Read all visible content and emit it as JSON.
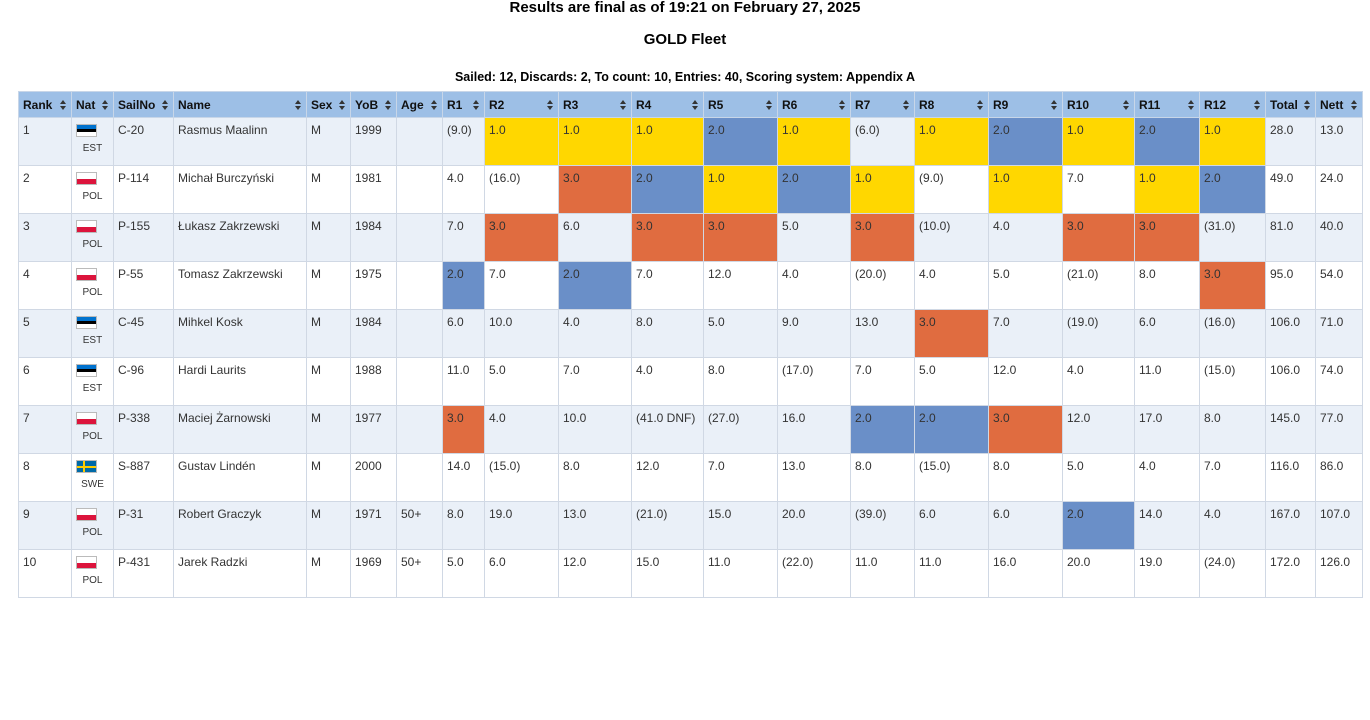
{
  "header": {
    "title": "Results are final as of 19:21 on February 27, 2025",
    "fleet": "GOLD Fleet",
    "summary": "Sailed: 12, Discards: 2, To count: 10, Entries: 40, Scoring system: Appendix A"
  },
  "table": {
    "columns": [
      "Rank",
      "Nat",
      "SailNo",
      "Name",
      "Sex",
      "YoB",
      "Age",
      "R1",
      "R2",
      "R3",
      "R4",
      "R5",
      "R6",
      "R7",
      "R8",
      "R9",
      "R10",
      "R11",
      "R12",
      "Total",
      "Nett"
    ],
    "highlight": {
      "1.0": "#ffd700",
      "2.0": "#6a8fc8",
      "3.0": "#e06c40"
    },
    "flags": {
      "EST": {
        "stripes": [
          "#0072ce",
          "#000000",
          "#ffffff"
        ]
      },
      "POL": {
        "stripes": [
          "#ffffff",
          "#dc143c"
        ]
      },
      "SWE": {
        "stripes": [
          "#006aa7"
        ],
        "cross": "#fecc00"
      }
    },
    "rows": [
      [
        "1",
        "EST",
        "C-20",
        "Rasmus Maalinn",
        "M",
        "1999",
        null,
        "(9.0)",
        "1.0",
        "1.0",
        "1.0",
        "2.0",
        "1.0",
        "(6.0)",
        "1.0",
        "2.0",
        "1.0",
        "2.0",
        "1.0",
        "28.0",
        "13.0"
      ],
      [
        "2",
        "POL",
        "P-114",
        "Michał Burczyński",
        "M",
        "1981",
        null,
        "4.0",
        "(16.0)",
        "3.0",
        "2.0",
        "1.0",
        "2.0",
        "1.0",
        "(9.0)",
        "1.0",
        "7.0",
        "1.0",
        "2.0",
        "49.0",
        "24.0"
      ],
      [
        "3",
        "POL",
        "P-155",
        "Łukasz Zakrzewski",
        "M",
        "1984",
        null,
        "7.0",
        "3.0",
        "6.0",
        "3.0",
        "3.0",
        "5.0",
        "3.0",
        "(10.0)",
        "4.0",
        "3.0",
        "3.0",
        "(31.0)",
        "81.0",
        "40.0"
      ],
      [
        "4",
        "POL",
        "P-55",
        "Tomasz Zakrzewski",
        "M",
        "1975",
        null,
        "2.0",
        "7.0",
        "2.0",
        "7.0",
        "12.0",
        "4.0",
        "(20.0)",
        "4.0",
        "5.0",
        "(21.0)",
        "8.0",
        "3.0",
        "95.0",
        "54.0"
      ],
      [
        "5",
        "EST",
        "C-45",
        "Mihkel Kosk",
        "M",
        "1984",
        null,
        "6.0",
        "10.0",
        "4.0",
        "8.0",
        "5.0",
        "9.0",
        "13.0",
        "3.0",
        "7.0",
        "(19.0)",
        "6.0",
        "(16.0)",
        "106.0",
        "71.0"
      ],
      [
        "6",
        "EST",
        "C-96",
        "Hardi Laurits",
        "M",
        "1988",
        null,
        "11.0",
        "5.0",
        "7.0",
        "4.0",
        "8.0",
        "(17.0)",
        "7.0",
        "5.0",
        "12.0",
        "4.0",
        "11.0",
        "(15.0)",
        "106.0",
        "74.0"
      ],
      [
        "7",
        "POL",
        "P-338",
        "Maciej Żarnowski",
        "M",
        "1977",
        null,
        "3.0",
        "4.0",
        "10.0",
        "(41.0 DNF)",
        "(27.0)",
        "16.0",
        "2.0",
        "2.0",
        "3.0",
        "12.0",
        "17.0",
        "8.0",
        "145.0",
        "77.0"
      ],
      [
        "8",
        "SWE",
        "S-887",
        "Gustav Lindén",
        "M",
        "2000",
        null,
        "14.0",
        "(15.0)",
        "8.0",
        "12.0",
        "7.0",
        "13.0",
        "8.0",
        "(15.0)",
        "8.0",
        "5.0",
        "4.0",
        "7.0",
        "116.0",
        "86.0"
      ],
      [
        "9",
        "POL",
        "P-31",
        "Robert Graczyk",
        "M",
        "1971",
        "50+",
        "8.0",
        "19.0",
        "13.0",
        "(21.0)",
        "15.0",
        "20.0",
        "(39.0)",
        "6.0",
        "6.0",
        "2.0",
        "14.0",
        "4.0",
        "167.0",
        "107.0"
      ],
      [
        "10",
        "POL",
        "P-431",
        "Jarek Radzki",
        "M",
        "1969",
        "50+",
        "5.0",
        "6.0",
        "12.0",
        "15.0",
        "11.0",
        "(22.0)",
        "11.0",
        "11.0",
        "16.0",
        "20.0",
        "19.0",
        "(24.0)",
        "172.0",
        "126.0"
      ]
    ]
  }
}
